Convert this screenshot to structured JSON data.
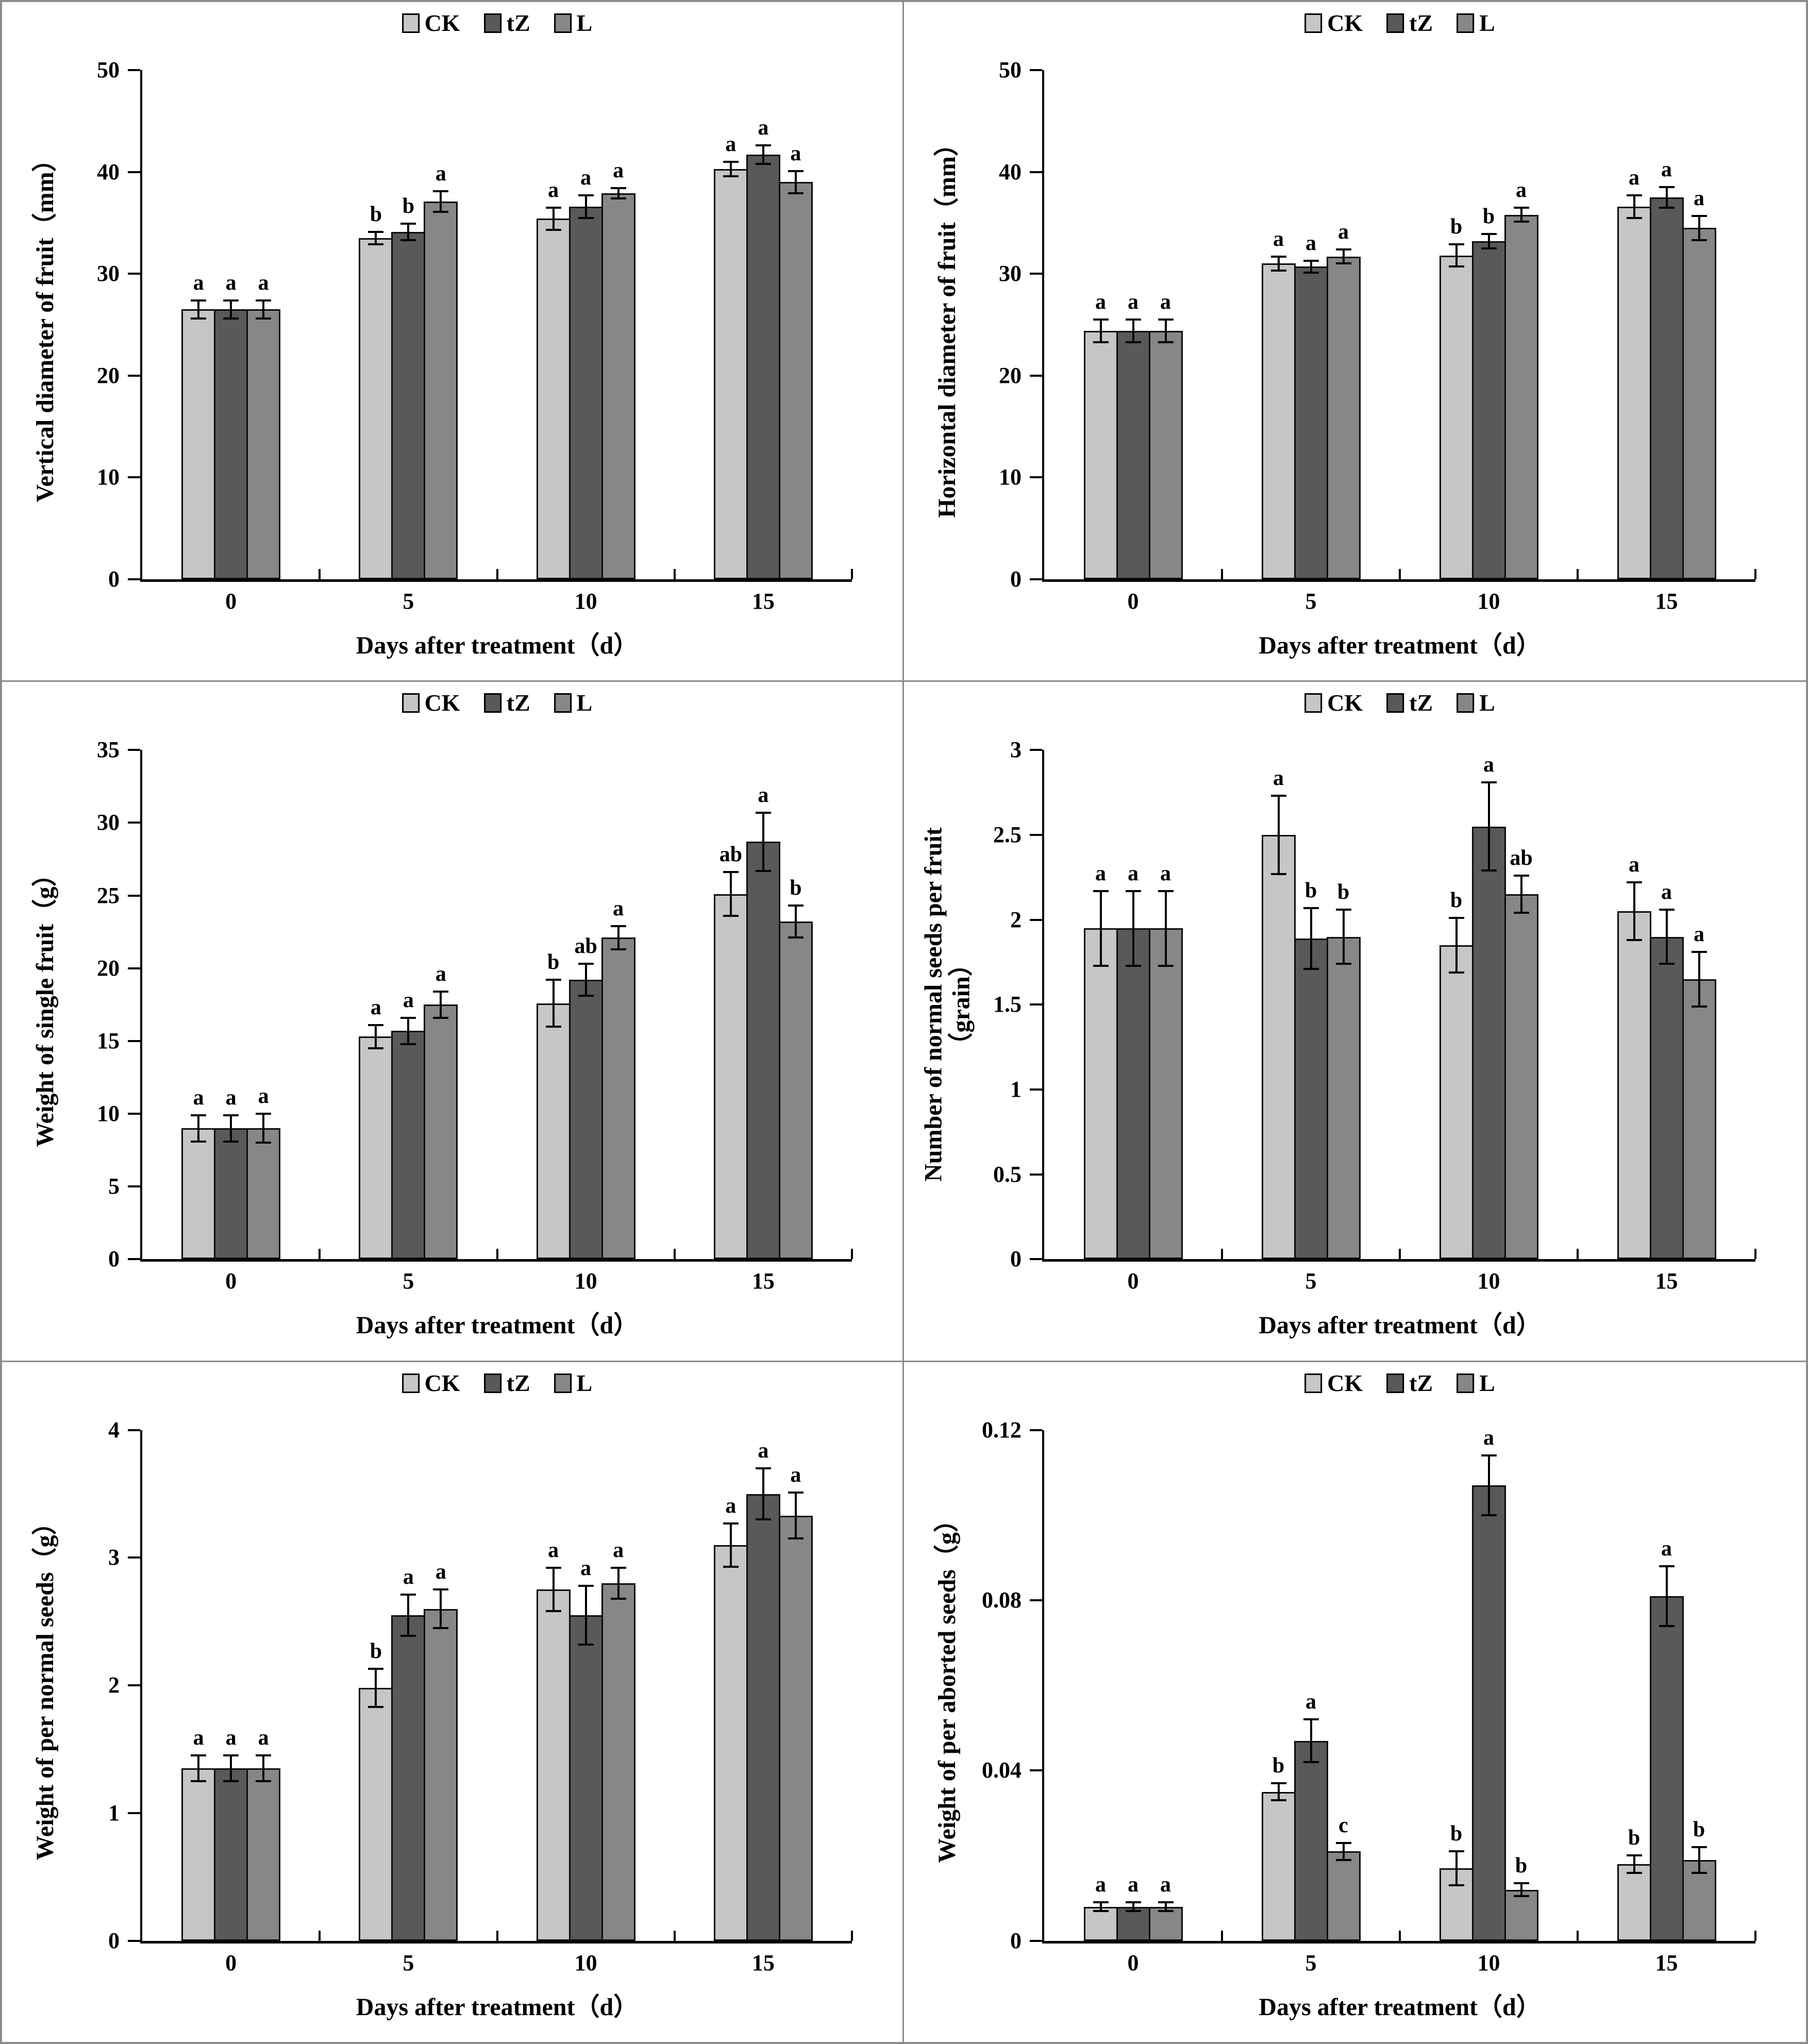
{
  "figure": {
    "background": "#ffffff",
    "frame_color": "#8c8c8c",
    "bar_edge_color": "#0d0d0d",
    "legend_items": [
      {
        "label": "CK",
        "color": "#c6c6c6"
      },
      {
        "label": "tZ",
        "color": "#595959"
      },
      {
        "label": "L",
        "color": "#878787"
      }
    ]
  },
  "chart_data": [
    {
      "type": "bar",
      "panel": "top-left",
      "title": "",
      "ylabel": "Vertical diameter of fruit（mm）",
      "xlabel": "Days after treatment（d）",
      "categories": [
        "0",
        "5",
        "10",
        "15"
      ],
      "ylim": [
        0,
        50
      ],
      "yticks": [
        0,
        10,
        20,
        30,
        40,
        50
      ],
      "grid": false,
      "legend_position": "top",
      "series": [
        {
          "name": "CK",
          "color": "#c6c6c6",
          "values": [
            26.5,
            33.5,
            35.4,
            40.3
          ],
          "errors": [
            0.9,
            0.6,
            1.1,
            0.7
          ],
          "letters": [
            "a",
            "b",
            "a",
            "a"
          ]
        },
        {
          "name": "tZ",
          "color": "#595959",
          "values": [
            26.5,
            34.1,
            36.6,
            41.7
          ],
          "errors": [
            0.9,
            0.8,
            1.1,
            0.9
          ],
          "letters": [
            "a",
            "b",
            "a",
            "a"
          ]
        },
        {
          "name": "L",
          "color": "#878787",
          "values": [
            26.5,
            37.1,
            37.9,
            39.0
          ],
          "errors": [
            0.9,
            1.0,
            0.5,
            1.1
          ],
          "letters": [
            "a",
            "a",
            "a",
            "a"
          ]
        }
      ]
    },
    {
      "type": "bar",
      "panel": "top-right",
      "title": "",
      "ylabel": "Horizontal diameter of fruit（mm）",
      "xlabel": "Days after treatment（d）",
      "categories": [
        "0",
        "5",
        "10",
        "15"
      ],
      "ylim": [
        0,
        50
      ],
      "yticks": [
        0,
        10,
        20,
        30,
        40,
        50
      ],
      "grid": false,
      "legend_position": "top",
      "series": [
        {
          "name": "CK",
          "color": "#c6c6c6",
          "values": [
            24.4,
            31.0,
            31.8,
            36.6
          ],
          "errors": [
            1.1,
            0.7,
            1.1,
            1.1
          ],
          "letters": [
            "a",
            "a",
            "b",
            "a"
          ]
        },
        {
          "name": "tZ",
          "color": "#595959",
          "values": [
            24.4,
            30.7,
            33.2,
            37.5
          ],
          "errors": [
            1.1,
            0.6,
            0.7,
            1.0
          ],
          "letters": [
            "a",
            "a",
            "b",
            "a"
          ]
        },
        {
          "name": "L",
          "color": "#878787",
          "values": [
            24.4,
            31.7,
            35.8,
            34.5
          ],
          "errors": [
            1.1,
            0.7,
            0.7,
            1.2
          ],
          "letters": [
            "a",
            "a",
            "a",
            "a"
          ]
        }
      ]
    },
    {
      "type": "bar",
      "panel": "middle-left",
      "title": "",
      "ylabel": "Weight of single fruit（g）",
      "xlabel": "Days after treatment（d）",
      "categories": [
        "0",
        "5",
        "10",
        "15"
      ],
      "ylim": [
        0,
        35
      ],
      "yticks": [
        0,
        5,
        10,
        15,
        20,
        25,
        30,
        35
      ],
      "grid": false,
      "legend_position": "top",
      "series": [
        {
          "name": "CK",
          "color": "#c6c6c6",
          "values": [
            9.0,
            15.3,
            17.6,
            25.1
          ],
          "errors": [
            0.9,
            0.8,
            1.6,
            1.5
          ],
          "letters": [
            "a",
            "a",
            "b",
            "ab"
          ]
        },
        {
          "name": "tZ",
          "color": "#595959",
          "values": [
            9.0,
            15.7,
            19.2,
            28.7
          ],
          "errors": [
            0.9,
            0.9,
            1.1,
            2.0
          ],
          "letters": [
            "a",
            "a",
            "ab",
            "a"
          ]
        },
        {
          "name": "L",
          "color": "#878787",
          "values": [
            9.0,
            17.5,
            22.1,
            23.2
          ],
          "errors": [
            1.0,
            0.9,
            0.8,
            1.1
          ],
          "letters": [
            "a",
            "a",
            "a",
            "b"
          ]
        }
      ]
    },
    {
      "type": "bar",
      "panel": "middle-right",
      "title": "",
      "ylabel": "Number of normal seeds per fruit\n（grain）",
      "xlabel": "Days after treatment（d）",
      "categories": [
        "0",
        "5",
        "10",
        "15"
      ],
      "ylim": [
        0,
        3
      ],
      "yticks": [
        0,
        0.5,
        1,
        1.5,
        2,
        2.5,
        3
      ],
      "grid": false,
      "legend_position": "top",
      "series": [
        {
          "name": "CK",
          "color": "#c6c6c6",
          "values": [
            1.95,
            2.5,
            1.85,
            2.05
          ],
          "errors": [
            0.22,
            0.23,
            0.16,
            0.17
          ],
          "letters": [
            "a",
            "a",
            "b",
            "a"
          ]
        },
        {
          "name": "tZ",
          "color": "#595959",
          "values": [
            1.95,
            1.89,
            2.55,
            1.9
          ],
          "errors": [
            0.22,
            0.18,
            0.26,
            0.16
          ],
          "letters": [
            "a",
            "b",
            "a",
            "a"
          ]
        },
        {
          "name": "L",
          "color": "#878787",
          "values": [
            1.95,
            1.9,
            2.15,
            1.65
          ],
          "errors": [
            0.22,
            0.16,
            0.11,
            0.16
          ],
          "letters": [
            "a",
            "b",
            "ab",
            "a"
          ]
        }
      ]
    },
    {
      "type": "bar",
      "panel": "bottom-left",
      "title": "",
      "ylabel": "Weight of per normal seeds（g）",
      "xlabel": "Days after treatment（d）",
      "categories": [
        "0",
        "5",
        "10",
        "15"
      ],
      "ylim": [
        0,
        4
      ],
      "yticks": [
        0,
        1,
        2,
        3,
        4
      ],
      "grid": false,
      "legend_position": "top",
      "series": [
        {
          "name": "CK",
          "color": "#c6c6c6",
          "values": [
            1.35,
            1.98,
            2.75,
            3.1
          ],
          "errors": [
            0.1,
            0.15,
            0.17,
            0.17
          ],
          "letters": [
            "a",
            "b",
            "a",
            "a"
          ]
        },
        {
          "name": "tZ",
          "color": "#595959",
          "values": [
            1.35,
            2.55,
            2.55,
            3.5
          ],
          "errors": [
            0.1,
            0.16,
            0.23,
            0.2
          ],
          "letters": [
            "a",
            "a",
            "a",
            "a"
          ]
        },
        {
          "name": "L",
          "color": "#878787",
          "values": [
            1.35,
            2.6,
            2.8,
            3.33
          ],
          "errors": [
            0.1,
            0.15,
            0.12,
            0.18
          ],
          "letters": [
            "a",
            "a",
            "a",
            "a"
          ]
        }
      ]
    },
    {
      "type": "bar",
      "panel": "bottom-right",
      "title": "",
      "ylabel": "Weight of per aborted seeds（g）",
      "xlabel": "Days after treatment（d）",
      "categories": [
        "0",
        "5",
        "10",
        "15"
      ],
      "ylim": [
        0,
        0.12
      ],
      "yticks": [
        0,
        0.04,
        0.08,
        0.12
      ],
      "grid": false,
      "legend_position": "top",
      "series": [
        {
          "name": "CK",
          "color": "#c6c6c6",
          "values": [
            0.008,
            0.035,
            0.017,
            0.018
          ],
          "errors": [
            0.001,
            0.002,
            0.004,
            0.002
          ],
          "letters": [
            "a",
            "b",
            "b",
            "b"
          ]
        },
        {
          "name": "tZ",
          "color": "#595959",
          "values": [
            0.008,
            0.047,
            0.107,
            0.081
          ],
          "errors": [
            0.001,
            0.005,
            0.007,
            0.007
          ],
          "letters": [
            "a",
            "a",
            "a",
            "a"
          ]
        },
        {
          "name": "L",
          "color": "#878787",
          "values": [
            0.008,
            0.021,
            0.012,
            0.019
          ],
          "errors": [
            0.001,
            0.002,
            0.0015,
            0.003
          ],
          "letters": [
            "a",
            "c",
            "b",
            "b"
          ]
        }
      ]
    }
  ]
}
